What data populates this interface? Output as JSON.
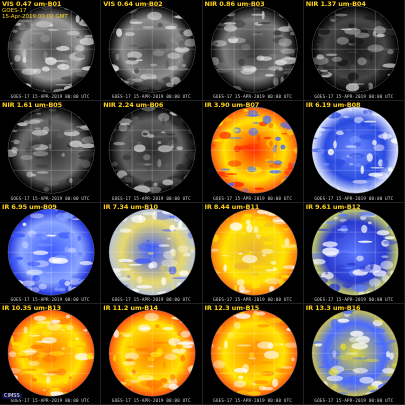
{
  "satellite": "GOES-17",
  "datetime_line": "15-Apr-2019 00:00 GMT",
  "timestamp": "GOES-17 15-APR-2019 00:00 UTC",
  "logo": "CIMSS",
  "panels": [
    {
      "label": "VIS 0.47 um-B01",
      "type": "vis",
      "palette": [
        "#000000",
        "#4a4a4a",
        "#9a9a9a",
        "#e8e8e8"
      ]
    },
    {
      "label": "VIS 0.64 um-B02",
      "type": "vis",
      "palette": [
        "#000000",
        "#454545",
        "#8e8e8e",
        "#eeeeee"
      ]
    },
    {
      "label": "NIR 0.86 um-B03",
      "type": "vis",
      "palette": [
        "#000000",
        "#3a3a3a",
        "#7a7a7a",
        "#dddddd"
      ]
    },
    {
      "label": "NIR 1.37 um-B04",
      "type": "vis",
      "palette": [
        "#000000",
        "#151515",
        "#454545",
        "#cfcfcf"
      ]
    },
    {
      "label": "NIR 1.61 um-B05",
      "type": "vis",
      "palette": [
        "#000000",
        "#2e2e2e",
        "#6a6a6a",
        "#cccccc"
      ]
    },
    {
      "label": "NIR 2.24 um-B06",
      "type": "vis",
      "palette": [
        "#000000",
        "#2a2a2a",
        "#5e5e5e",
        "#c8c8c8"
      ]
    },
    {
      "label": "IR 3.90 um-B07",
      "type": "ir",
      "palette": [
        "#ff5a10",
        "#ff2a00",
        "#ffe400",
        "#4a6cff"
      ]
    },
    {
      "label": "IR 6.19 um-B08",
      "type": "ir",
      "palette": [
        "#dfe6ff",
        "#6f8cff",
        "#2a4ae0",
        "#ffffff"
      ]
    },
    {
      "label": "IR 6.95 um-B09",
      "type": "ir",
      "palette": [
        "#2030e0",
        "#3a58ff",
        "#8aa6ff",
        "#ffffff"
      ]
    },
    {
      "label": "IR 7.34 um-B10",
      "type": "ir",
      "palette": [
        "#b8c4d8",
        "#3a58ff",
        "#e8d86a",
        "#ffffff"
      ]
    },
    {
      "label": "IR 8.44 um-B11",
      "type": "ir",
      "palette": [
        "#ff7a10",
        "#e8b030",
        "#ffe400",
        "#ffffff"
      ]
    },
    {
      "label": "IR 9.61 um-B12",
      "type": "ir",
      "palette": [
        "#c8d060",
        "#5a78ff",
        "#2a3ad0",
        "#ffffff"
      ]
    },
    {
      "label": "IR 10.35 um-B13",
      "type": "ir",
      "palette": [
        "#ff5010",
        "#ff7a00",
        "#ffe400",
        "#ffffff"
      ]
    },
    {
      "label": "IR 11.2 um-B14",
      "type": "ir",
      "palette": [
        "#ff5010",
        "#ff7a00",
        "#ffe400",
        "#ffffff"
      ]
    },
    {
      "label": "IR 12.3 um-B15",
      "type": "ir",
      "palette": [
        "#ff5a10",
        "#ff8a00",
        "#ffe400",
        "#ffffff"
      ]
    },
    {
      "label": "IR 13.3 um-B16",
      "type": "ir",
      "palette": [
        "#c8c050",
        "#e0d830",
        "#4a6aff",
        "#ffffff"
      ]
    }
  ]
}
